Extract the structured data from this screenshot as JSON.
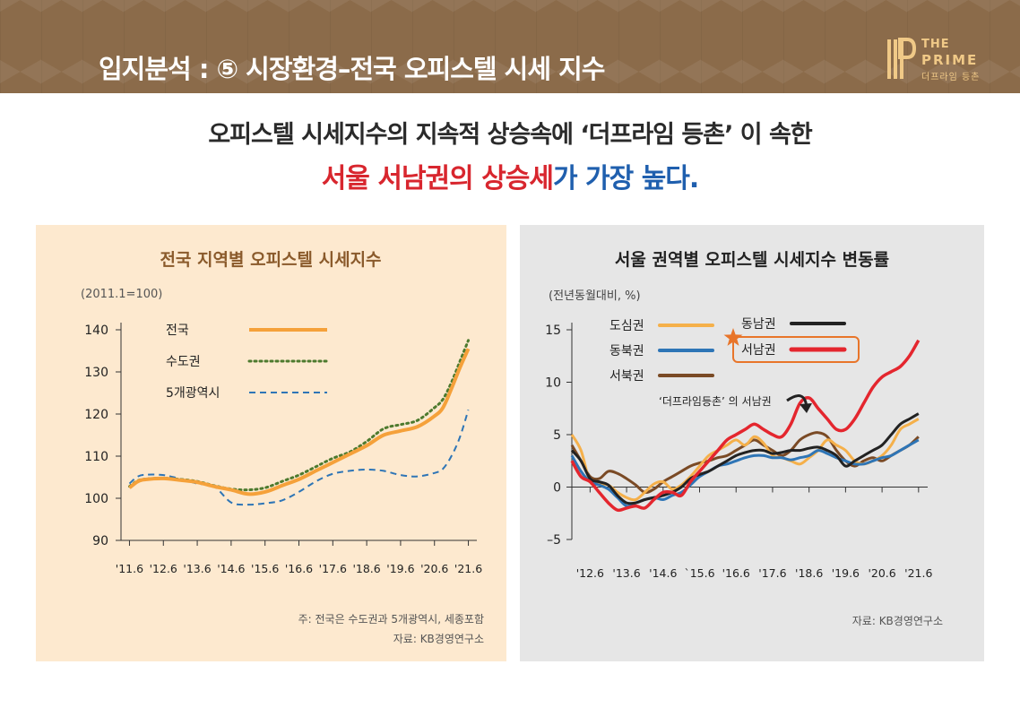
{
  "header": {
    "title": "입지분석 : ⑤ 시장환경–전국 오피스텔 시세 지수",
    "logo_the": "THE",
    "logo_prime": "PRIME",
    "logo_sub": "더프라임 등촌"
  },
  "headline": {
    "line1": "오피스텔 시세지수의 지속적 상승속에 ‘더프라임 등촌’ 이 속한",
    "line2_red": "서울 서남권의 상승세",
    "line2_blue": "가 가장 높다."
  },
  "colors": {
    "header_bg": "#8b6b4a",
    "accent_gold": "#f0c987",
    "red": "#d8262e",
    "blue": "#1f5fae",
    "orange": "#f5a13a",
    "green": "#4d7a2e",
    "dark_blue": "#2e75b6",
    "black": "#222222",
    "brown": "#7a4a25",
    "left_title": "#8a5a2b"
  },
  "chart_data": [
    {
      "type": "line",
      "title": "전국 지역별 오피스텔 시세지수",
      "subtitle": "(2011.1=100)",
      "xlabel": "",
      "ylabel": "",
      "ylim": [
        90,
        140
      ],
      "yticks": [
        "140",
        "130",
        "120",
        "110",
        "100",
        "90"
      ],
      "xticks": [
        "'11.6",
        "'12.6",
        "'13.6",
        "'14.6",
        "'15.6",
        "'16.6",
        "'17.6",
        "'18.6",
        "'19.6",
        "'20.6",
        "'21.6"
      ],
      "x": [
        2011.5,
        2011.75,
        2012.0,
        2012.5,
        2013.0,
        2013.5,
        2014.0,
        2014.5,
        2015.0,
        2015.5,
        2016.0,
        2016.5,
        2017.0,
        2017.5,
        2018.0,
        2018.5,
        2019.0,
        2019.5,
        2020.0,
        2020.5,
        2020.75,
        2021.0,
        2021.25,
        2021.5
      ],
      "series": [
        {
          "name": "전국",
          "style": "solid",
          "color": "#f5a13a",
          "values": [
            102.5,
            104,
            104.5,
            104.7,
            104.3,
            103.8,
            102.8,
            102,
            101,
            101.5,
            103,
            104.5,
            106.5,
            108.5,
            110.5,
            112.5,
            115,
            116,
            117,
            119.5,
            121.5,
            126,
            131,
            135.5
          ]
        },
        {
          "name": "수도권",
          "style": "dotted",
          "color": "#4d7a2e",
          "values": [
            102.8,
            104.2,
            104.6,
            104.8,
            104.5,
            104,
            103,
            102.2,
            102,
            102.5,
            104,
            105.5,
            107.5,
            109.5,
            111,
            113.5,
            116.5,
            117.5,
            118.5,
            121.5,
            123.5,
            127.5,
            132.5,
            137.5
          ]
        },
        {
          "name": "5개광역시",
          "style": "dashed",
          "color": "#2e75b6",
          "values": [
            103.5,
            105.2,
            105.6,
            105.5,
            104.6,
            103.5,
            102.8,
            99,
            98.5,
            98.8,
            99.5,
            101.5,
            104,
            105.8,
            106.5,
            106.8,
            106.5,
            105.5,
            105.2,
            106,
            107,
            110,
            114.5,
            121
          ]
        }
      ],
      "notes": [
        "주: 전국은 수도권과 5개광역시, 세종포함",
        "자료: KB경영연구소"
      ]
    },
    {
      "type": "line",
      "title": "서울 권역별 오피스텔 시세지수 변동률",
      "subtitle": "(전년동월대비, %)",
      "xlabel": "",
      "ylabel": "",
      "ylim": [
        -5,
        15
      ],
      "yticks": [
        "15",
        "10",
        "5",
        "0",
        "–5"
      ],
      "xticks": [
        "'12.6",
        "'13.6",
        "'14.6",
        "`15.6",
        "'16.6",
        "'17.6",
        "'18.6",
        "'19.6",
        "'20.6",
        "'21.6"
      ],
      "x": [
        2012.0,
        2012.25,
        2012.5,
        2012.75,
        2013.0,
        2013.25,
        2013.5,
        2013.75,
        2014.0,
        2014.25,
        2014.5,
        2014.75,
        2015.0,
        2015.25,
        2015.5,
        2015.75,
        2016.0,
        2016.25,
        2016.5,
        2016.75,
        2017.0,
        2017.25,
        2017.5,
        2017.75,
        2018.0,
        2018.25,
        2018.5,
        2018.75,
        2019.0,
        2019.25,
        2019.5,
        2019.75,
        2020.0,
        2020.25,
        2020.5,
        2020.75,
        2021.0,
        2021.25,
        2021.5
      ],
      "series": [
        {
          "name": "도심권",
          "color": "#f5b04a",
          "values": [
            5,
            3.5,
            0.5,
            0.3,
            0.2,
            -0.5,
            -1.0,
            -1.2,
            -0.5,
            0.3,
            0.5,
            -0.2,
            0.2,
            1.0,
            2.0,
            3.0,
            3.5,
            4.0,
            4.5,
            4.0,
            4.8,
            4.2,
            3.0,
            2.8,
            2.5,
            2.2,
            2.8,
            3.5,
            4.5,
            4.0,
            3.5,
            2.5,
            2.2,
            2.5,
            3.0,
            4.0,
            5.5,
            6.0,
            6.5
          ]
        },
        {
          "name": "동남권",
          "color": "#222222",
          "values": [
            3.5,
            2.5,
            0.8,
            0.5,
            0.2,
            -0.8,
            -1.5,
            -1.5,
            -1.2,
            -1.0,
            -0.8,
            -0.5,
            0.0,
            0.8,
            1.2,
            1.5,
            2.0,
            2.5,
            3.0,
            3.3,
            3.5,
            3.5,
            3.2,
            3.3,
            3.5,
            3.5,
            3.7,
            3.8,
            3.5,
            3.0,
            2.0,
            2.5,
            3.0,
            3.5,
            4.0,
            5.0,
            6.0,
            6.5,
            7.0
          ]
        },
        {
          "name": "동북권",
          "color": "#2e75b6",
          "values": [
            3.0,
            1.5,
            0.5,
            0.2,
            -0.2,
            -1.0,
            -1.8,
            -1.5,
            -1.2,
            -1.0,
            -1.2,
            -0.8,
            -0.5,
            0.2,
            1.0,
            1.5,
            2.0,
            2.2,
            2.5,
            2.8,
            3.0,
            3.0,
            2.8,
            2.8,
            2.6,
            2.8,
            3.0,
            3.5,
            3.2,
            2.8,
            2.5,
            2.2,
            2.2,
            2.5,
            2.8,
            3.0,
            3.5,
            4.0,
            4.5
          ]
        },
        {
          "name": "서남권",
          "color": "#e4262e",
          "values": [
            2.5,
            1.0,
            0.5,
            -0.5,
            -1.5,
            -2.2,
            -2.0,
            -1.8,
            -2.0,
            -1.2,
            -0.5,
            -0.5,
            -0.8,
            0.5,
            1.5,
            2.5,
            3.5,
            4.5,
            5.0,
            5.5,
            6.0,
            5.5,
            5.0,
            4.8,
            6.0,
            8.0,
            8.5,
            7.5,
            6.5,
            5.5,
            5.5,
            6.5,
            8.0,
            9.5,
            10.5,
            11.0,
            11.5,
            12.5,
            14.0
          ]
        },
        {
          "name": "서북권",
          "color": "#7a4a25",
          "values": [
            4.0,
            2.5,
            1.0,
            0.8,
            1.5,
            1.3,
            0.8,
            0.2,
            -0.5,
            -0.2,
            0.5,
            1.0,
            1.5,
            2.0,
            2.3,
            2.5,
            2.8,
            3.0,
            3.5,
            4.0,
            4.5,
            4.0,
            3.5,
            3.0,
            3.5,
            4.5,
            5.0,
            5.2,
            4.8,
            3.5,
            2.5,
            2.0,
            2.5,
            2.8,
            2.5,
            3.0,
            3.5,
            4.0,
            4.8
          ]
        }
      ],
      "annotation": "‘더프라임등촌’ 의 서남권",
      "notes": [
        "자료: KB경영연구소"
      ]
    }
  ]
}
